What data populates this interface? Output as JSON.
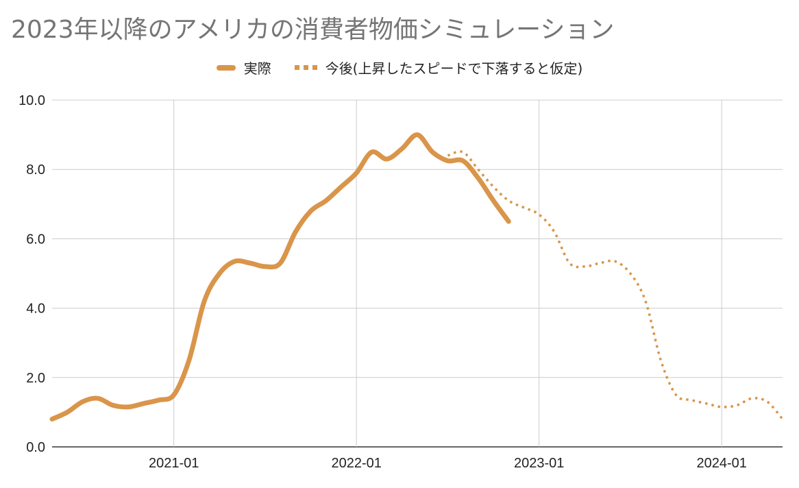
{
  "chart_data": {
    "type": "line",
    "title": "2023年以降のアメリカの消費者物価シミュレーション",
    "xlabel": "",
    "ylabel": "",
    "ylim": [
      0,
      10
    ],
    "yticks": [
      "0.0",
      "2.0",
      "4.0",
      "6.0",
      "8.0",
      "10.0"
    ],
    "xticks": [
      "2021-01",
      "2022-01",
      "2023-01",
      "2024-01"
    ],
    "grid": true,
    "legend_position": "top",
    "series": [
      {
        "name": "実際",
        "style": "solid",
        "color": "#D9954A",
        "x": [
          "2020-05",
          "2020-06",
          "2020-07",
          "2020-08",
          "2020-09",
          "2020-10",
          "2020-11",
          "2020-12",
          "2021-01",
          "2021-02",
          "2021-03",
          "2021-04",
          "2021-05",
          "2021-06",
          "2021-07",
          "2021-08",
          "2021-09",
          "2021-10",
          "2021-11",
          "2021-12",
          "2022-01",
          "2022-02",
          "2022-03",
          "2022-04",
          "2022-05",
          "2022-06",
          "2022-07",
          "2022-08",
          "2022-09",
          "2022-10",
          "2022-11"
        ],
        "values": [
          0.8,
          1.0,
          1.3,
          1.4,
          1.2,
          1.15,
          1.25,
          1.35,
          1.5,
          2.5,
          4.2,
          5.0,
          5.35,
          5.3,
          5.2,
          5.3,
          6.2,
          6.8,
          7.1,
          7.5,
          7.9,
          8.5,
          8.3,
          8.6,
          9.0,
          8.5,
          8.25,
          8.25,
          7.75,
          7.1,
          6.5
        ]
      },
      {
        "name": "今後(上昇したスピードで下落すると仮定)",
        "style": "dotted",
        "color": "#D9954A",
        "x": [
          "2022-07",
          "2022-08",
          "2022-09",
          "2022-10",
          "2022-11",
          "2022-12",
          "2023-01",
          "2023-02",
          "2023-03",
          "2023-04",
          "2023-05",
          "2023-06",
          "2023-07",
          "2023-08",
          "2023-09",
          "2023-10",
          "2023-11",
          "2023-12",
          "2024-01",
          "2024-02",
          "2024-03",
          "2024-04",
          "2024-05"
        ],
        "values": [
          8.4,
          8.5,
          8.0,
          7.5,
          7.1,
          6.9,
          6.7,
          6.2,
          5.3,
          5.2,
          5.3,
          5.35,
          5.0,
          4.2,
          2.5,
          1.5,
          1.35,
          1.25,
          1.15,
          1.2,
          1.4,
          1.3,
          0.8
        ]
      }
    ]
  }
}
